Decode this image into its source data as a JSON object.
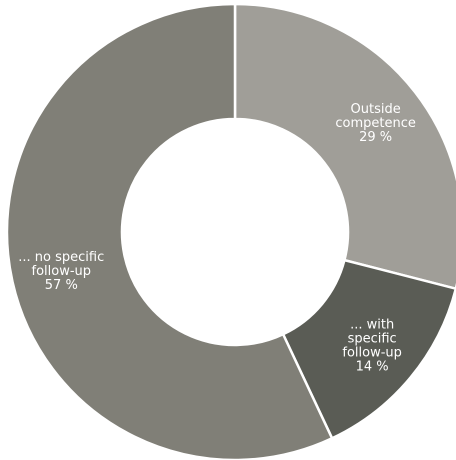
{
  "chart_data": {
    "type": "pie",
    "donut": true,
    "slices": [
      {
        "lines": [
          "Outside",
          "competence"
        ],
        "value": 29,
        "value_text": "29 %",
        "color": "#a09e98"
      },
      {
        "lines": [
          "... with",
          "specific",
          "follow-up"
        ],
        "value": 14,
        "value_text": "14 %",
        "color": "#5a5c55"
      },
      {
        "lines": [
          "... no specific",
          "follow-up"
        ],
        "value": 57,
        "value_text": "57 %",
        "color": "#807f77"
      }
    ],
    "legend": "none"
  }
}
